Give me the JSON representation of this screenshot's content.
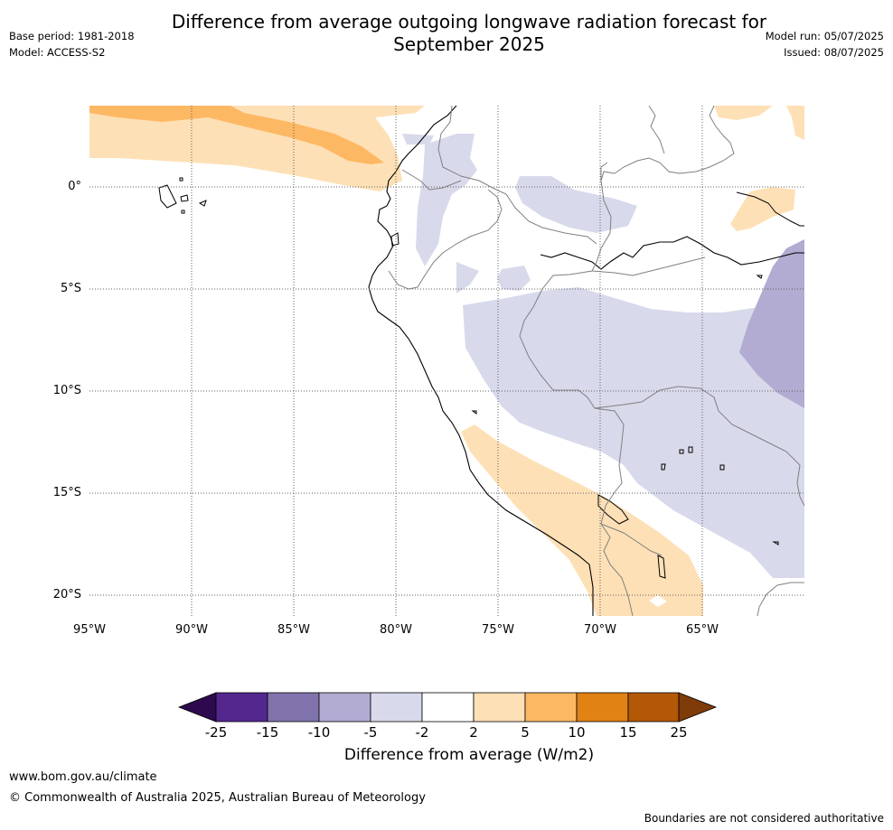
{
  "title_line1": "Difference from average outgoing longwave radiation forecast for",
  "title_line2": "September 2025",
  "base_period": "Base period: 1981-2018",
  "model": "Model: ACCESS-S2",
  "model_run": "Model run: 05/07/2025",
  "issued": "Issued: 08/07/2025",
  "lat_labels": [
    "0°",
    "5°S",
    "10°S",
    "15°S",
    "20°S"
  ],
  "lon_labels": [
    "95°W",
    "90°W",
    "85°W",
    "80°W",
    "75°W",
    "70°W",
    "65°W"
  ],
  "colorbar": {
    "ticks": [
      "-25",
      "-15",
      "-10",
      "-5",
      "-2",
      "2",
      "5",
      "10",
      "15",
      "25"
    ],
    "colors": [
      "#2d0a4e",
      "#54278f",
      "#8073ac",
      "#b2abd2",
      "#d8daeb",
      "#ffffff",
      "#fee0b6",
      "#fdb863",
      "#e08214",
      "#b35806",
      "#7f3b08"
    ],
    "label": "Difference from average (W/m2)"
  },
  "footer_url": "www.bom.gov.au/climate",
  "copyright": "© Commonwealth of Australia 2025, Australian Bureau of Meteorology",
  "disclaimer": "Boundaries are not considered authoritative"
}
